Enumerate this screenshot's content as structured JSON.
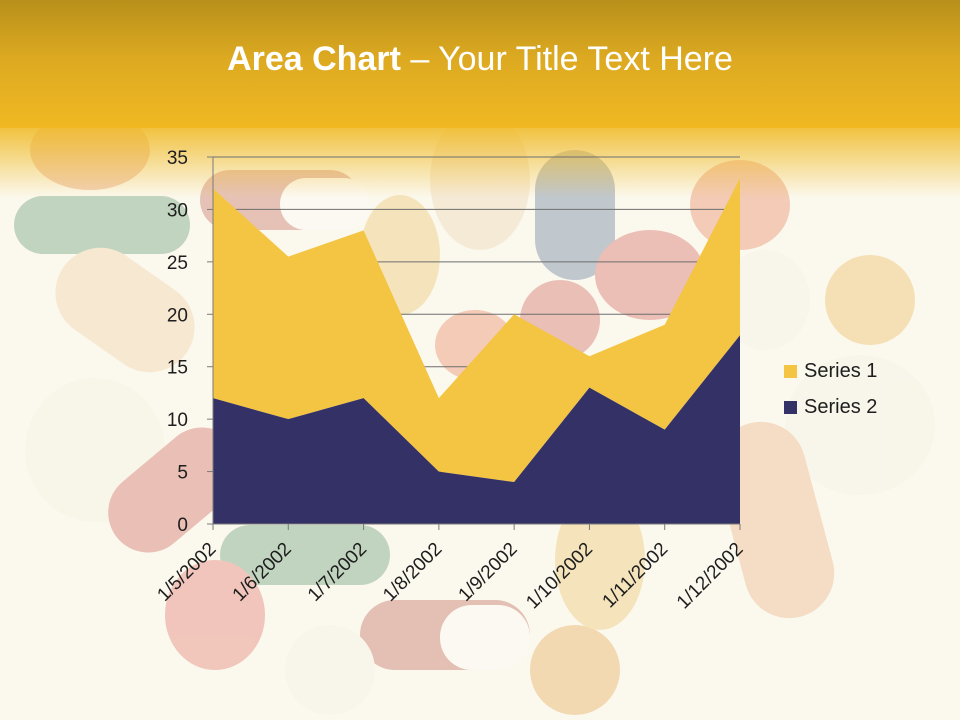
{
  "slide": {
    "title_bold": "Area Chart",
    "title_rest": " – Your Title Text Here"
  },
  "colors": {
    "series1": "#f4c542",
    "series2": "#343166",
    "axis": "#7a7a7a",
    "gridline": "#6e6e6e"
  },
  "chart_data": {
    "type": "area",
    "stacked": true,
    "categories": [
      "1/5/2002",
      "1/6/2002",
      "1/7/2002",
      "1/8/2002",
      "1/9/2002",
      "1/10/2002",
      "1/11/2002",
      "1/12/2002"
    ],
    "series": [
      {
        "name": "Series 1",
        "values": [
          20,
          15.5,
          16,
          7,
          16,
          3,
          10,
          15
        ]
      },
      {
        "name": "Series 2",
        "values": [
          12,
          10,
          12,
          5,
          4,
          13,
          9,
          18
        ]
      }
    ],
    "yticks": [
      0,
      5,
      10,
      15,
      20,
      25,
      30,
      35
    ],
    "ylim": [
      0,
      35
    ],
    "grid": true,
    "legend": "right"
  }
}
